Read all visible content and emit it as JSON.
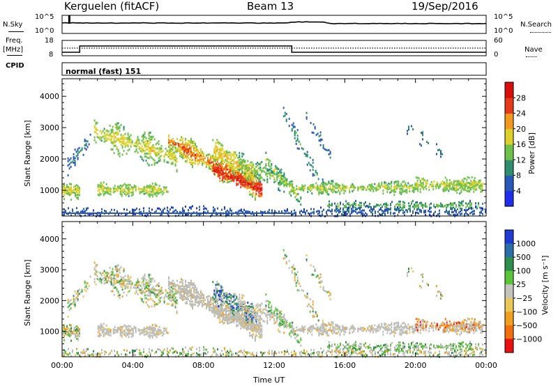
{
  "header": {
    "station": "Kerguelen (fitACF)",
    "beam": "Beam 13",
    "date": "19/Sep/2016"
  },
  "sky_panel": {
    "left_label": "N.Sky",
    "right_label": "N.Search",
    "ticks": [
      "10^5",
      "10^0"
    ],
    "right_ticks": [
      "10^5",
      "10^0"
    ]
  },
  "freq_panel": {
    "left_label_1": "Freq.",
    "left_label_2": "[MHz]",
    "left_ticks": [
      "18",
      "8"
    ],
    "right_label": "Nave",
    "right_ticks": [
      "60",
      "0"
    ]
  },
  "cpid": {
    "label": "CPID",
    "mode": "normal (fast) 151"
  },
  "chart_data": [
    {
      "type": "heatmap",
      "panel": "power",
      "ylabel": "Slant Range [km]",
      "x_ticks": [
        "00:00",
        "04:00",
        "08:00",
        "12:00",
        "16:00",
        "20:00",
        "00:00"
      ],
      "y_ticks": [
        1000,
        2000,
        3000,
        4000
      ],
      "xlim_hours": [
        0,
        24
      ],
      "ylim_km": [
        180,
        4560
      ],
      "colorbar": {
        "label": "Power [dB]",
        "ticks": [
          "4",
          "8",
          "12",
          "16",
          "20",
          "24",
          "28"
        ],
        "colors": [
          "#1f2ee8",
          "#2a58b8",
          "#2f8e6e",
          "#6fbf4c",
          "#dcd12c",
          "#f29a1f",
          "#e53a1c",
          "#d8100c"
        ]
      }
    },
    {
      "type": "heatmap",
      "panel": "velocity",
      "ylabel": "Slant Range [km]",
      "xlabel": "Time UT",
      "x_ticks": [
        "00:00",
        "04:00",
        "08:00",
        "12:00",
        "16:00",
        "20:00",
        "00:00"
      ],
      "y_ticks": [
        1000,
        2000,
        3000,
        4000
      ],
      "xlim_hours": [
        0,
        24
      ],
      "ylim_km": [
        180,
        4560
      ],
      "colorbar": {
        "label": "Velocity [m s⁻¹]",
        "ticks": [
          "1000",
          "500",
          "100",
          "25",
          "−25",
          "−100",
          "−500",
          "−1000"
        ],
        "colors": [
          "#1f3ad0",
          "#2a6fa8",
          "#2f8e4e",
          "#5cc43a",
          "#c4c4bc",
          "#e8c85a",
          "#f0a020",
          "#f07010",
          "#e81010"
        ]
      }
    }
  ],
  "colors": {
    "ground_scatter": "#bdbdb5",
    "axis": "#000000"
  }
}
